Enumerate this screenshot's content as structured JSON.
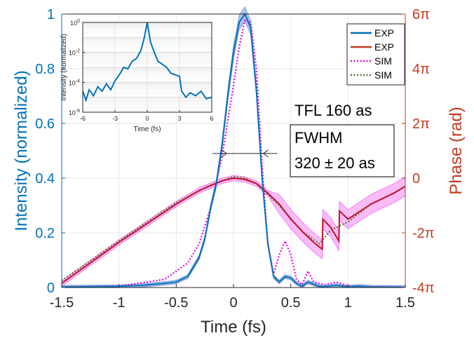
{
  "chart_data": {
    "type": "line",
    "xlabel": "Time (fs)",
    "ylabel_left": "Intensity (normalized)",
    "ylabel_right": "Phase (rad)",
    "xlim": [
      -1.5,
      1.5
    ],
    "ylim_left": [
      0,
      1
    ],
    "ylim_right_pi": [
      -4,
      6
    ],
    "x_ticks": [
      "-1.5",
      "-1",
      "-0.5",
      "0",
      "0.5",
      "1",
      "1.5"
    ],
    "y_ticks_left": [
      "0",
      "0.2",
      "0.4",
      "0.6",
      "0.8",
      "1"
    ],
    "y_ticks_right": [
      {
        "value_pi": 6,
        "label": "6π"
      },
      {
        "value_pi": 4,
        "label": "4π"
      },
      {
        "value_pi": 2,
        "label": "2π"
      },
      {
        "value_pi": 0,
        "label": "0"
      },
      {
        "value_pi": -2,
        "label": "-2π"
      },
      {
        "value_pi": -4,
        "label": "-4π"
      }
    ],
    "grid": true,
    "legend": {
      "placement": "top-right",
      "entries": [
        {
          "label": "EXP",
          "color": "#0072BD",
          "style": "solid"
        },
        {
          "label": "EXP",
          "color": "#C23B22",
          "style": "solid"
        },
        {
          "label": "SIM",
          "color": "#E800E8",
          "style": "dotted"
        },
        {
          "label": "SIM",
          "color": "#4A7A28",
          "style": "dotted"
        }
      ]
    },
    "annotations": {
      "tfl": "TFL 160 as",
      "fwhm_line1": "FWHM",
      "fwhm_line2": "320 ± 20 as"
    },
    "fwhm_marker": {
      "x_left": -0.06,
      "x_right": 0.26,
      "y": 0.49
    },
    "colors": {
      "intensity": "#0072BD",
      "intensity_band": "#6F8FD6",
      "phase": "#C8102E",
      "phase_band": "#F26BF2",
      "sim_intensity": "#E800E8",
      "sim_phase": "#4A7A28",
      "left_axis": "#0072BD",
      "right_axis": "#C23B22"
    },
    "series": [
      {
        "name": "EXP",
        "axis": "left",
        "x": [
          -1.5,
          -1.2,
          -1.0,
          -0.8,
          -0.6,
          -0.5,
          -0.4,
          -0.3,
          -0.25,
          -0.2,
          -0.15,
          -0.1,
          -0.05,
          0.0,
          0.05,
          0.1,
          0.15,
          0.2,
          0.25,
          0.3,
          0.35,
          0.4,
          0.45,
          0.5,
          0.55,
          0.6,
          0.65,
          0.7,
          0.75,
          0.8,
          0.9,
          1.0,
          1.1,
          1.2,
          1.5
        ],
        "y": [
          0.002,
          0.003,
          0.004,
          0.008,
          0.015,
          0.02,
          0.04,
          0.11,
          0.18,
          0.29,
          0.38,
          0.52,
          0.7,
          0.86,
          0.97,
          1.0,
          0.95,
          0.72,
          0.4,
          0.16,
          0.04,
          0.02,
          0.04,
          0.035,
          0.015,
          0.005,
          0.02,
          0.012,
          0.004,
          0.003,
          0.008,
          0.002,
          0.005,
          0.002,
          0.001
        ]
      },
      {
        "name": "EXP",
        "axis": "right",
        "unit": "pi",
        "x": [
          -1.5,
          -1.25,
          -1.0,
          -0.75,
          -0.5,
          -0.3,
          -0.1,
          0.0,
          0.1,
          0.2,
          0.3,
          0.4,
          0.5,
          0.6,
          0.7,
          0.775,
          0.78,
          0.85,
          0.92,
          0.925,
          1.0,
          1.2,
          1.4,
          1.5
        ],
        "y": [
          -3.85,
          -3.1,
          -2.35,
          -1.65,
          -0.95,
          -0.45,
          -0.1,
          0.0,
          -0.05,
          -0.2,
          -0.55,
          -0.95,
          -1.5,
          -1.95,
          -2.35,
          -2.6,
          -1.5,
          -1.8,
          -2.3,
          -1.2,
          -1.5,
          -0.95,
          -0.55,
          -0.3
        ]
      },
      {
        "name": "SIM",
        "axis": "left",
        "x": [
          -1.5,
          -1.0,
          -0.6,
          -0.4,
          -0.3,
          -0.2,
          -0.1,
          0.0,
          0.05,
          0.1,
          0.15,
          0.2,
          0.25,
          0.3,
          0.35,
          0.4,
          0.45,
          0.5,
          0.55,
          0.6,
          0.65,
          0.7,
          0.8,
          0.9,
          1.0,
          1.5
        ],
        "y": [
          0.002,
          0.005,
          0.03,
          0.09,
          0.16,
          0.29,
          0.48,
          0.74,
          0.88,
          0.98,
          0.97,
          0.8,
          0.45,
          0.16,
          0.05,
          0.12,
          0.17,
          0.12,
          0.03,
          0.01,
          0.06,
          0.02,
          0.01,
          0.02,
          0.005,
          0.001
        ]
      },
      {
        "name": "SIM",
        "axis": "right",
        "unit": "pi",
        "x": [
          -1.5,
          -1.0,
          -0.5,
          -0.2,
          0.0,
          0.1,
          0.2,
          0.4,
          0.6,
          0.75,
          0.85,
          1.0,
          1.2,
          1.4,
          1.5
        ],
        "y": [
          -3.75,
          -2.3,
          -0.9,
          -0.25,
          0.05,
          0.0,
          -0.2,
          -1.0,
          -1.95,
          -2.4,
          -1.9,
          -1.6,
          -0.95,
          -0.55,
          -0.3
        ]
      }
    ],
    "inset": {
      "type": "line",
      "xlabel": "Time (fs)",
      "ylabel": "Intensity (normalized)",
      "xlim": [
        -6,
        6
      ],
      "ylim_log10": [
        -6,
        0
      ],
      "x_ticks": [
        "-6",
        "-3",
        "0",
        "3",
        "6"
      ],
      "y_ticks": [
        {
          "exp": 0,
          "label": "10",
          "sup": "0"
        },
        {
          "exp": -2,
          "label": "10",
          "sup": "-2"
        },
        {
          "exp": -4,
          "label": "10",
          "sup": "-4"
        },
        {
          "exp": -6,
          "label": "10",
          "sup": "-6"
        }
      ],
      "grid": true,
      "series": [
        {
          "name": "EXP",
          "x": [
            -6.0,
            -5.7,
            -5.4,
            -5.0,
            -4.6,
            -4.2,
            -3.8,
            -3.4,
            -3.0,
            -2.6,
            -2.2,
            -1.8,
            -1.4,
            -1.0,
            -0.6,
            -0.3,
            0.0,
            0.3,
            0.6,
            1.0,
            1.4,
            1.8,
            2.2,
            2.6,
            3.0,
            3.2,
            3.6,
            4.0,
            4.5,
            5.0,
            5.5,
            6.0
          ],
          "log10_y": [
            -4.6,
            -5.2,
            -4.5,
            -4.9,
            -4.3,
            -4.6,
            -4.1,
            -4.5,
            -3.9,
            -3.5,
            -3.0,
            -3.1,
            -2.6,
            -2.4,
            -1.9,
            -1.1,
            0.0,
            -1.3,
            -1.9,
            -2.6,
            -2.8,
            -3.0,
            -3.4,
            -3.5,
            -3.6,
            -4.6,
            -5.0,
            -4.7,
            -4.9,
            -4.6,
            -5.1,
            -5.0
          ]
        }
      ]
    }
  }
}
